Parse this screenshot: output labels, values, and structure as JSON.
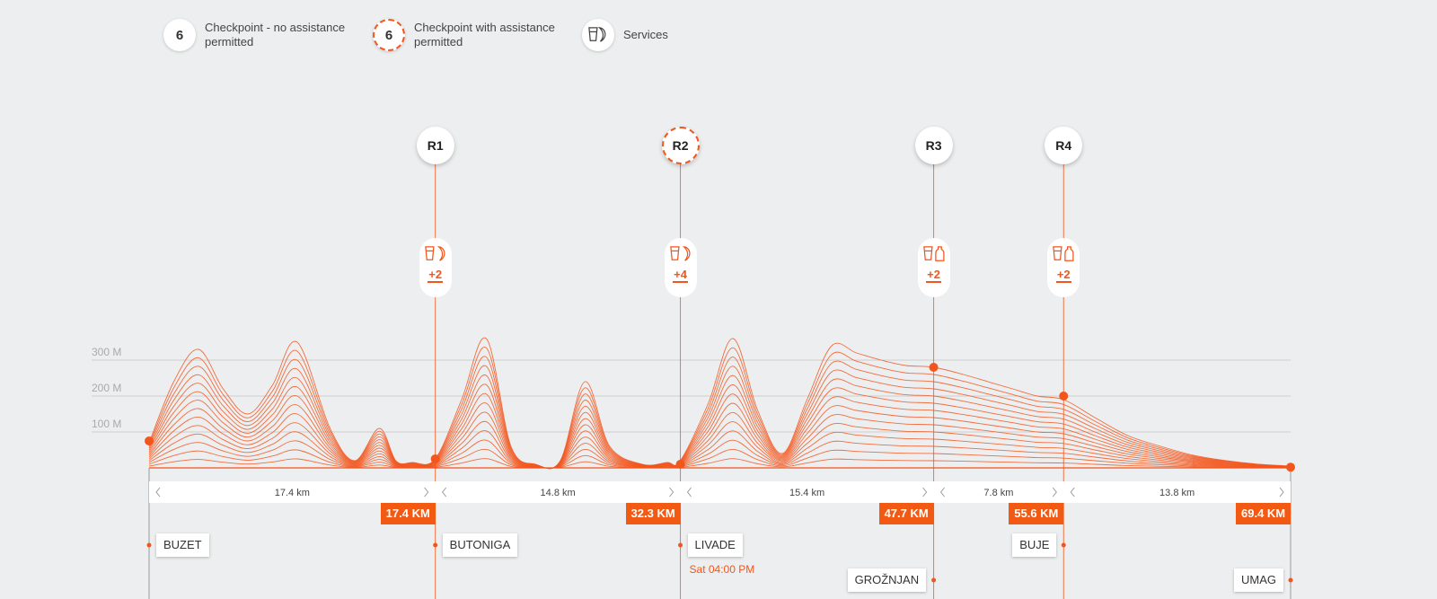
{
  "legend": [
    {
      "badge": "6",
      "line1": "Checkpoint - no assistance",
      "line2": "permitted",
      "style": "solid"
    },
    {
      "badge": "6",
      "line1": "Checkpoint with assistance",
      "line2": "permitted",
      "style": "dashed"
    },
    {
      "badge_icon": "services-icon",
      "line1": "Services",
      "line2": "",
      "style": "solid"
    }
  ],
  "colors": {
    "accent": "#f2561d",
    "km_label_bg": "#f25a14",
    "background": "#edeeef",
    "gridline": "#cfcfcf"
  },
  "chart_data": {
    "type": "area",
    "y_axis": {
      "ticks": [
        "100 M",
        "200 M",
        "300 M"
      ],
      "values": [
        100,
        200,
        300
      ],
      "ylim": [
        0,
        330
      ]
    },
    "x_range_km": [
      0,
      69.4
    ],
    "elevation_profile": {
      "x": [
        0,
        1.5,
        3,
        4.5,
        6,
        7.5,
        9,
        11,
        12.5,
        14,
        15,
        16,
        17.4,
        19,
        20.5,
        22,
        23.5,
        25,
        26.5,
        28,
        30,
        31.5,
        32.3,
        34,
        35.5,
        37,
        38.5,
        40,
        41.5,
        43,
        44.5,
        46,
        47.7,
        49.5,
        51,
        52.5,
        54,
        55.6,
        57.5,
        59.5,
        61.5,
        63.5,
        65.5,
        67.5,
        69.4
      ],
      "y": [
        70,
        240,
        330,
        220,
        150,
        230,
        350,
        110,
        20,
        110,
        20,
        15,
        25,
        190,
        360,
        60,
        10,
        20,
        240,
        60,
        10,
        15,
        20,
        180,
        360,
        160,
        40,
        190,
        340,
        320,
        300,
        285,
        280,
        260,
        240,
        220,
        200,
        190,
        140,
        90,
        60,
        35,
        20,
        10,
        5
      ]
    },
    "checkpoints": [
      {
        "id": "R1",
        "km": 17.4,
        "km_label": "17.4 KM",
        "assistance": false,
        "services_icons": [
          "drink-icon",
          "food-icon"
        ],
        "extra_services": "+2",
        "marker_elev": 25
      },
      {
        "id": "R2",
        "km": 32.3,
        "km_label": "32.3 KM",
        "assistance": true,
        "services_icons": [
          "drink-icon",
          "food-icon"
        ],
        "extra_services": "+4",
        "marker_elev": 10
      },
      {
        "id": "R3",
        "km": 47.7,
        "km_label": "47.7 KM",
        "assistance": false,
        "services_icons": [
          "drink-icon",
          "bottle-icon"
        ],
        "extra_services": "+2",
        "marker_elev": 280
      },
      {
        "id": "R4",
        "km": 55.6,
        "km_label": "55.6 KM",
        "assistance": false,
        "services_icons": [
          "drink-icon",
          "bottle-icon"
        ],
        "extra_services": "+2",
        "marker_elev": 200
      }
    ],
    "start": {
      "km": 0,
      "marker_elev": 75
    },
    "finish": {
      "km": 69.4,
      "km_label": "69.4 KM",
      "marker_elev": 2
    },
    "segments": [
      {
        "label": "17.4 km",
        "from_km": 0,
        "to_km": 17.4
      },
      {
        "label": "14.8 km",
        "from_km": 17.4,
        "to_km": 32.3
      },
      {
        "label": "15.4 km",
        "from_km": 32.3,
        "to_km": 47.7
      },
      {
        "label": "7.8 km",
        "from_km": 47.7,
        "to_km": 55.6
      },
      {
        "label": "13.8 km",
        "from_km": 55.6,
        "to_km": 69.4
      }
    ],
    "places": [
      {
        "name": "BUZET",
        "km": 0,
        "row": 1,
        "side": "right"
      },
      {
        "name": "BUTONIGA",
        "km": 17.4,
        "row": 1,
        "side": "right"
      },
      {
        "name": "LIVADE",
        "km": 32.3,
        "row": 1,
        "side": "right",
        "time": "Sat 04:00 PM"
      },
      {
        "name": "GROŽNJAN",
        "km": 47.7,
        "row": 2,
        "side": "left"
      },
      {
        "name": "BUJE",
        "km": 55.6,
        "row": 1,
        "side": "left"
      },
      {
        "name": "UMAG",
        "km": 69.4,
        "row": 2,
        "side": "left"
      }
    ]
  }
}
